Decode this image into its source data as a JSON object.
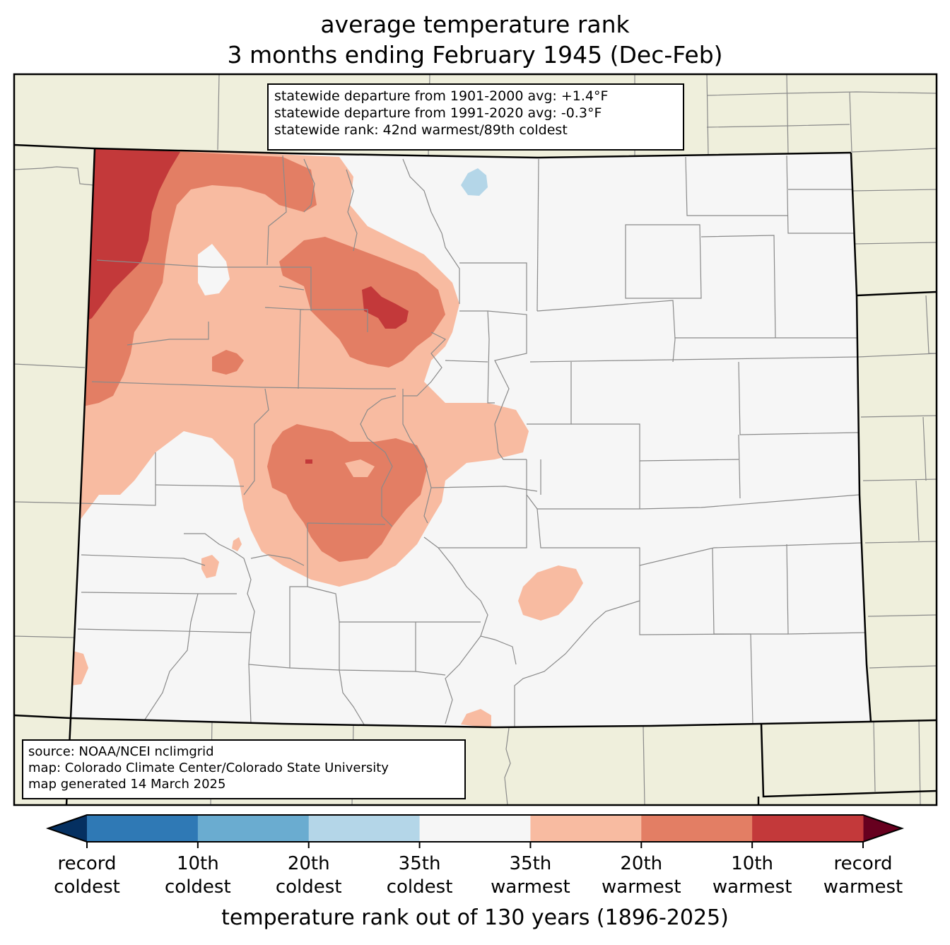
{
  "title": {
    "line1": "average temperature rank",
    "line2": "3 months ending February 1945 (Dec-Feb)"
  },
  "stats": {
    "line1": "statewide departure from 1901-2000 avg: +1.4°F",
    "line2": "statewide departure from 1991-2020 avg: -0.3°F",
    "line3": "statewide rank: 42nd warmest/89th coldest"
  },
  "source": {
    "line1": "source: NOAA/NCEI nclimgrid",
    "line2": "map: Colorado Climate Center/Colorado State University",
    "line3": "map generated 14 March 2025"
  },
  "colorbar": {
    "title": "temperature rank out of 130 years (1896-2025)",
    "ticks": [
      {
        "line1": "record",
        "line2": "coldest"
      },
      {
        "line1": "10th",
        "line2": "coldest"
      },
      {
        "line1": "20th",
        "line2": "coldest"
      },
      {
        "line1": "35th",
        "line2": "coldest"
      },
      {
        "line1": "35th",
        "line2": "warmest"
      },
      {
        "line1": "20th",
        "line2": "warmest"
      },
      {
        "line1": "10th",
        "line2": "warmest"
      },
      {
        "line1": "record",
        "line2": "warmest"
      }
    ],
    "colors": {
      "below_record_cold": "#053061",
      "record_to_10th_cold": "#2f79b5",
      "10th_to_20th_cold": "#6aacd0",
      "20th_to_35th_cold": "#b4d6e8",
      "near_normal": "#f6f6f6",
      "35th_to_20th_warm": "#f8bba1",
      "20th_to_10th_warm": "#e37e64",
      "10th_to_record_warm": "#c3393a",
      "above_record_warm": "#67001f"
    }
  },
  "map_colors": {
    "land_outside": "#efefdc",
    "state_border": "#000000",
    "county_lines": "#8a8a8a"
  }
}
